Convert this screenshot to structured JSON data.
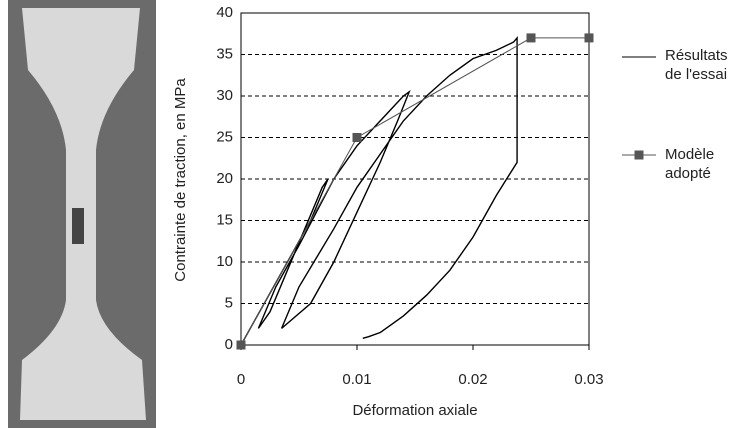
{
  "chart_data": {
    "type": "line",
    "xlabel": "Déformation axiale",
    "ylabel": "Contrainte de traction, en MPa",
    "xlim": [
      0,
      0.03
    ],
    "xticks": [
      0,
      0.01,
      0.02,
      0.03
    ],
    "ylim": [
      0,
      40
    ],
    "yticks": [
      0,
      5,
      10,
      15,
      20,
      25,
      30,
      35,
      40
    ],
    "grid": true,
    "series": [
      {
        "name": "Résultats de l'essai",
        "color": "#000000",
        "x": [
          0,
          0.002,
          0.004,
          0.006,
          0.0075,
          0.007,
          0.0055,
          0.004,
          0.0025,
          0.0015,
          0.003,
          0.005,
          0.0065,
          0.008,
          0.01,
          0.012,
          0.014,
          0.0145,
          0.0135,
          0.012,
          0.01,
          0.008,
          0.006,
          0.0035,
          0.005,
          0.008,
          0.01,
          0.012,
          0.014,
          0.016,
          0.018,
          0.02,
          0.022,
          0.0235,
          0.0238,
          0.0238,
          0.022,
          0.02,
          0.018,
          0.016,
          0.014,
          0.012,
          0.011,
          0.0105
        ],
        "values": [
          0,
          5,
          10,
          15,
          20,
          19,
          14,
          9,
          4,
          2,
          7,
          12,
          16,
          20,
          24,
          27,
          30,
          30.5,
          27,
          22,
          16,
          10,
          5,
          2,
          7,
          14,
          19,
          23,
          27,
          30,
          32.5,
          34.5,
          35.5,
          36.5,
          37,
          22,
          18,
          13,
          9,
          6,
          3.5,
          1.5,
          1,
          0.8
        ]
      },
      {
        "name": "Modèle adopté",
        "color": "#555555",
        "x": [
          0,
          0.01,
          0.025,
          0.03
        ],
        "values": [
          0,
          25,
          37,
          37
        ]
      }
    ]
  }
}
